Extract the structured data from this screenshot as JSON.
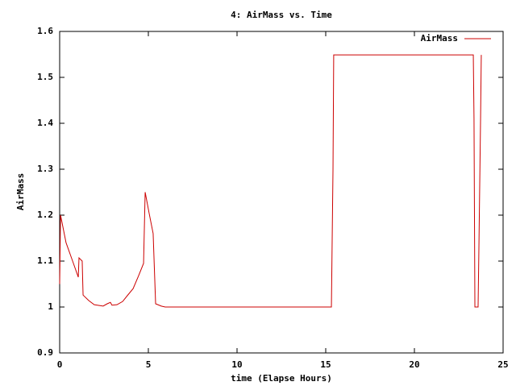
{
  "chart_data": {
    "type": "line",
    "title": "4: AirMass vs. Time",
    "xlabel": "time (Elapse Hours)",
    "ylabel": "AirMass",
    "xlim": [
      0,
      25
    ],
    "xticks": [
      0,
      5,
      10,
      15,
      20,
      25
    ],
    "ylim": [
      0.9,
      1.6
    ],
    "yticks": [
      0.9,
      1,
      1.1,
      1.2,
      1.3,
      1.4,
      1.5,
      1.6
    ],
    "grid": false,
    "legend": "top-right",
    "series": [
      {
        "name": "AirMass",
        "color": "#cc0000",
        "x": [
          0,
          0.05,
          0.36,
          0.73,
          1.05,
          1.09,
          1.27,
          1.32,
          1.64,
          1.95,
          2.45,
          2.68,
          2.86,
          2.95,
          3.23,
          3.55,
          3.82,
          4.14,
          4.45,
          4.73,
          4.82,
          5.05,
          5.27,
          5.41,
          5.73,
          5.95,
          15.32,
          15.41,
          15.45,
          23.32,
          23.36,
          23.41,
          23.59,
          23.64,
          23.73,
          23.77
        ],
        "values": [
          1.05,
          1.2,
          1.14,
          1.1,
          1.065,
          1.107,
          1.1,
          1.026,
          1.014,
          1.005,
          1.002,
          1.007,
          1.01,
          1.004,
          1.005,
          1.012,
          1.025,
          1.04,
          1.068,
          1.095,
          1.25,
          1.203,
          1.16,
          1.007,
          1.002,
          1.0,
          1.0,
          1.3,
          1.549,
          1.549,
          1.41,
          1.0,
          1.0,
          1.14,
          1.41,
          1.549
        ]
      }
    ]
  }
}
